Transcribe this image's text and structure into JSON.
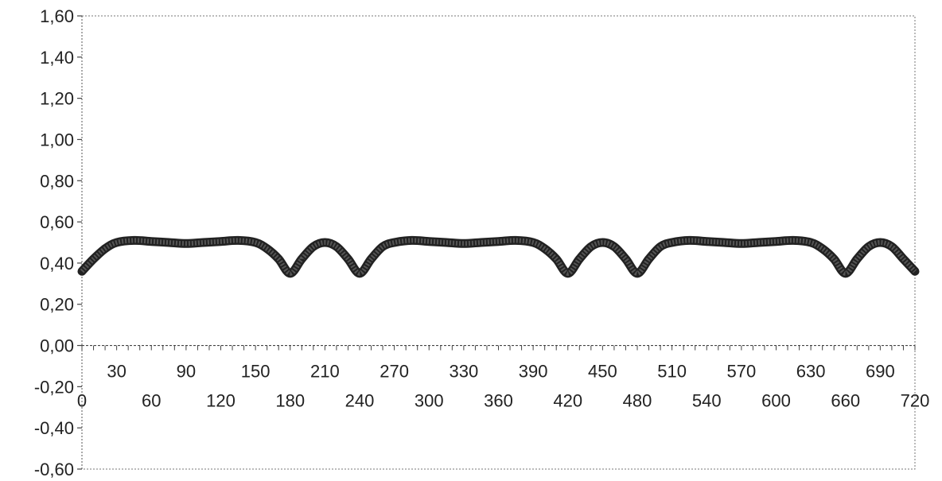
{
  "chart_data": {
    "type": "line",
    "title": "",
    "xlabel": "",
    "ylabel": "",
    "xlim": [
      0,
      720
    ],
    "ylim": [
      -0.6,
      1.6
    ],
    "grid": false,
    "legend": "none",
    "line_color": "#555555",
    "y_ticks": [
      "1,60",
      "1,40",
      "1,20",
      "1,00",
      "0,80",
      "0,60",
      "0,40",
      "0,20",
      "0,00",
      "-0,20",
      "-0,40",
      "-0,60"
    ],
    "x_ticks_upper": [
      "30",
      "90",
      "150",
      "210",
      "270",
      "330",
      "390",
      "450",
      "510",
      "570",
      "630",
      "690"
    ],
    "x_ticks_lower": [
      "0",
      "60",
      "120",
      "180",
      "240",
      "300",
      "360",
      "420",
      "480",
      "540",
      "600",
      "660",
      "720"
    ],
    "series": [
      {
        "x": [
          0,
          10,
          20,
          30,
          45,
          60,
          75,
          90,
          105,
          120,
          135,
          150,
          160,
          170,
          180,
          190,
          200,
          210,
          220,
          230,
          240,
          250,
          260,
          270,
          285,
          300,
          315,
          330,
          345,
          360,
          375,
          390,
          400,
          410,
          420,
          430,
          440,
          450,
          460,
          470,
          480,
          490,
          500,
          510,
          525,
          540,
          555,
          570,
          585,
          600,
          615,
          630,
          640,
          650,
          660,
          670,
          680,
          690,
          700,
          710,
          720
        ],
        "y": [
          0.36,
          0.42,
          0.47,
          0.5,
          0.51,
          0.505,
          0.5,
          0.495,
          0.5,
          0.505,
          0.51,
          0.5,
          0.47,
          0.42,
          0.35,
          0.42,
          0.48,
          0.5,
          0.48,
          0.42,
          0.35,
          0.42,
          0.48,
          0.5,
          0.51,
          0.505,
          0.5,
          0.495,
          0.5,
          0.505,
          0.51,
          0.5,
          0.47,
          0.42,
          0.35,
          0.42,
          0.48,
          0.5,
          0.48,
          0.42,
          0.35,
          0.42,
          0.48,
          0.5,
          0.51,
          0.505,
          0.5,
          0.495,
          0.5,
          0.505,
          0.51,
          0.5,
          0.47,
          0.42,
          0.35,
          0.42,
          0.48,
          0.5,
          0.48,
          0.42,
          0.36
        ]
      }
    ]
  }
}
